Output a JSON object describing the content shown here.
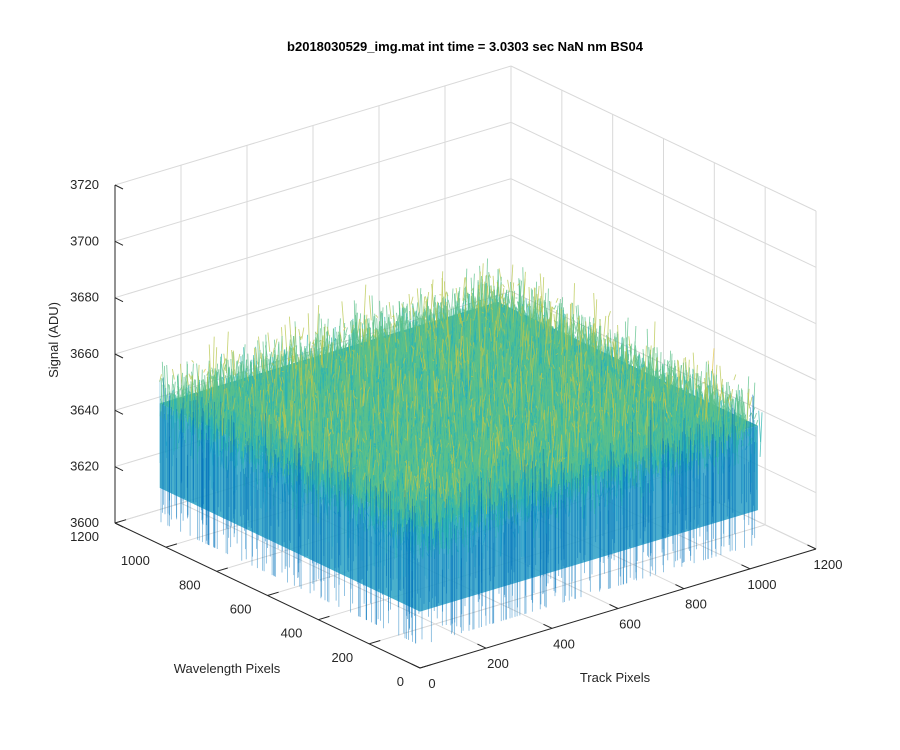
{
  "chart_data": {
    "type": "surface",
    "title": "b2018030529_img.mat int time = 3.0303 sec  NaN nm BS04",
    "xlabel": "Track Pixels",
    "ylabel": "Wavelength Pixels",
    "zlabel": "Signal (ADU)",
    "x_ticks": [
      "0",
      "200",
      "400",
      "600",
      "800",
      "1000",
      "1200"
    ],
    "y_ticks": [
      "0",
      "200",
      "400",
      "600",
      "800",
      "1000",
      "1200"
    ],
    "z_ticks": [
      "3600",
      "3620",
      "3640",
      "3660",
      "3680",
      "3700",
      "3720"
    ],
    "xlim": [
      0,
      1200
    ],
    "ylim": [
      0,
      1200
    ],
    "zlim": [
      3600,
      3720
    ],
    "data_extent": {
      "x": [
        0,
        1024
      ],
      "y": [
        0,
        1024
      ]
    },
    "signal_mean": 3650,
    "signal_typical_range": [
      3630,
      3670
    ],
    "signal_extreme_range": [
      3608,
      3702
    ],
    "colormap": [
      "#0072bd",
      "#1a9ec9",
      "#2fb6b0",
      "#5cc08a",
      "#b8c74e",
      "#e6c845"
    ],
    "grid": true,
    "view": "3d-isometric"
  }
}
